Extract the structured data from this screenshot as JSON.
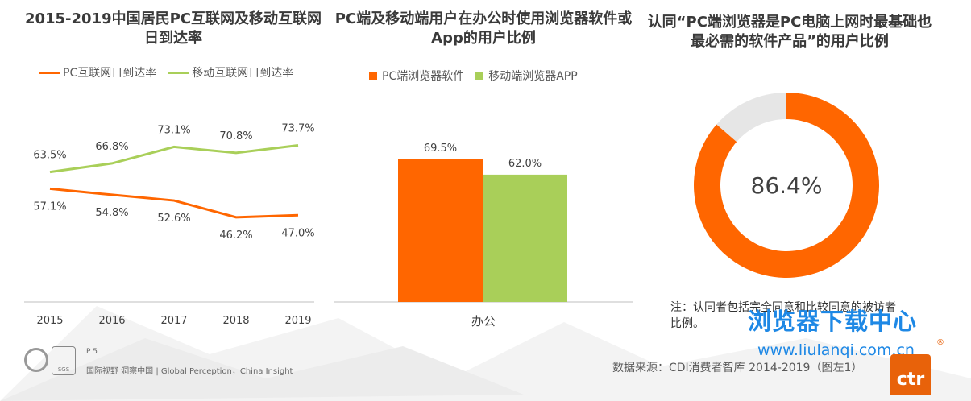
{
  "titles": {
    "chart1": "2015-2019中国居民PC互联网及移动互联网日到达率",
    "chart2": "PC端及移动端用户在办公时使用浏览器软件或App的用户比例",
    "chart3": "认同“PC端浏览器是PC电脑上网时最基础也最必需的软件产品”的用户比例"
  },
  "legend1": {
    "pc": "PC互联网日到达率",
    "mobile": "移动互联网日到达率"
  },
  "legend2": {
    "pc": "PC端浏览器软件",
    "mobile": "移动端浏览器APP"
  },
  "colors": {
    "orange": "#ff6600",
    "green": "#a9cf59",
    "donut_rest": "#e6e6e6"
  },
  "chart_data": [
    {
      "type": "line",
      "x": [
        "2015",
        "2016",
        "2017",
        "2018",
        "2019"
      ],
      "series": [
        {
          "name": "PC互联网日到达率",
          "values": [
            57.1,
            54.8,
            52.6,
            46.2,
            47.0
          ],
          "labels": [
            "57.1%",
            "54.8%",
            "52.6%",
            "46.2%",
            "47.0%"
          ]
        },
        {
          "name": "移动互联网日到达率",
          "values": [
            63.5,
            66.8,
            73.1,
            70.8,
            73.7
          ],
          "labels": [
            "63.5%",
            "66.8%",
            "73.1%",
            "70.8%",
            "73.7%"
          ]
        }
      ],
      "ylim": [
        40,
        80
      ]
    },
    {
      "type": "bar",
      "categories": [
        "办公"
      ],
      "series": [
        {
          "name": "PC端浏览器软件",
          "values": [
            69.5
          ],
          "labels": [
            "69.5%"
          ]
        },
        {
          "name": "移动端浏览器APP",
          "values": [
            62.0
          ],
          "labels": [
            "62.0%"
          ]
        }
      ],
      "ylim": [
        0,
        100
      ]
    },
    {
      "type": "pie",
      "values": [
        86.4,
        13.6
      ],
      "center_label": "86.4%"
    }
  ],
  "note": "注：认同者包括完全同意和比较同意的被访者比例。",
  "watermark": {
    "title": "浏览器下载中心",
    "url": "www.liulanqi.com.cn"
  },
  "source": "数据来源：CDI消费者智库 2014-2019（图左1）",
  "footer": {
    "page": "P 5",
    "tagline": "国际视野 洞察中国 | Global Perception，China Insight"
  },
  "logo_text": "ctr",
  "badge_text": "SGS"
}
